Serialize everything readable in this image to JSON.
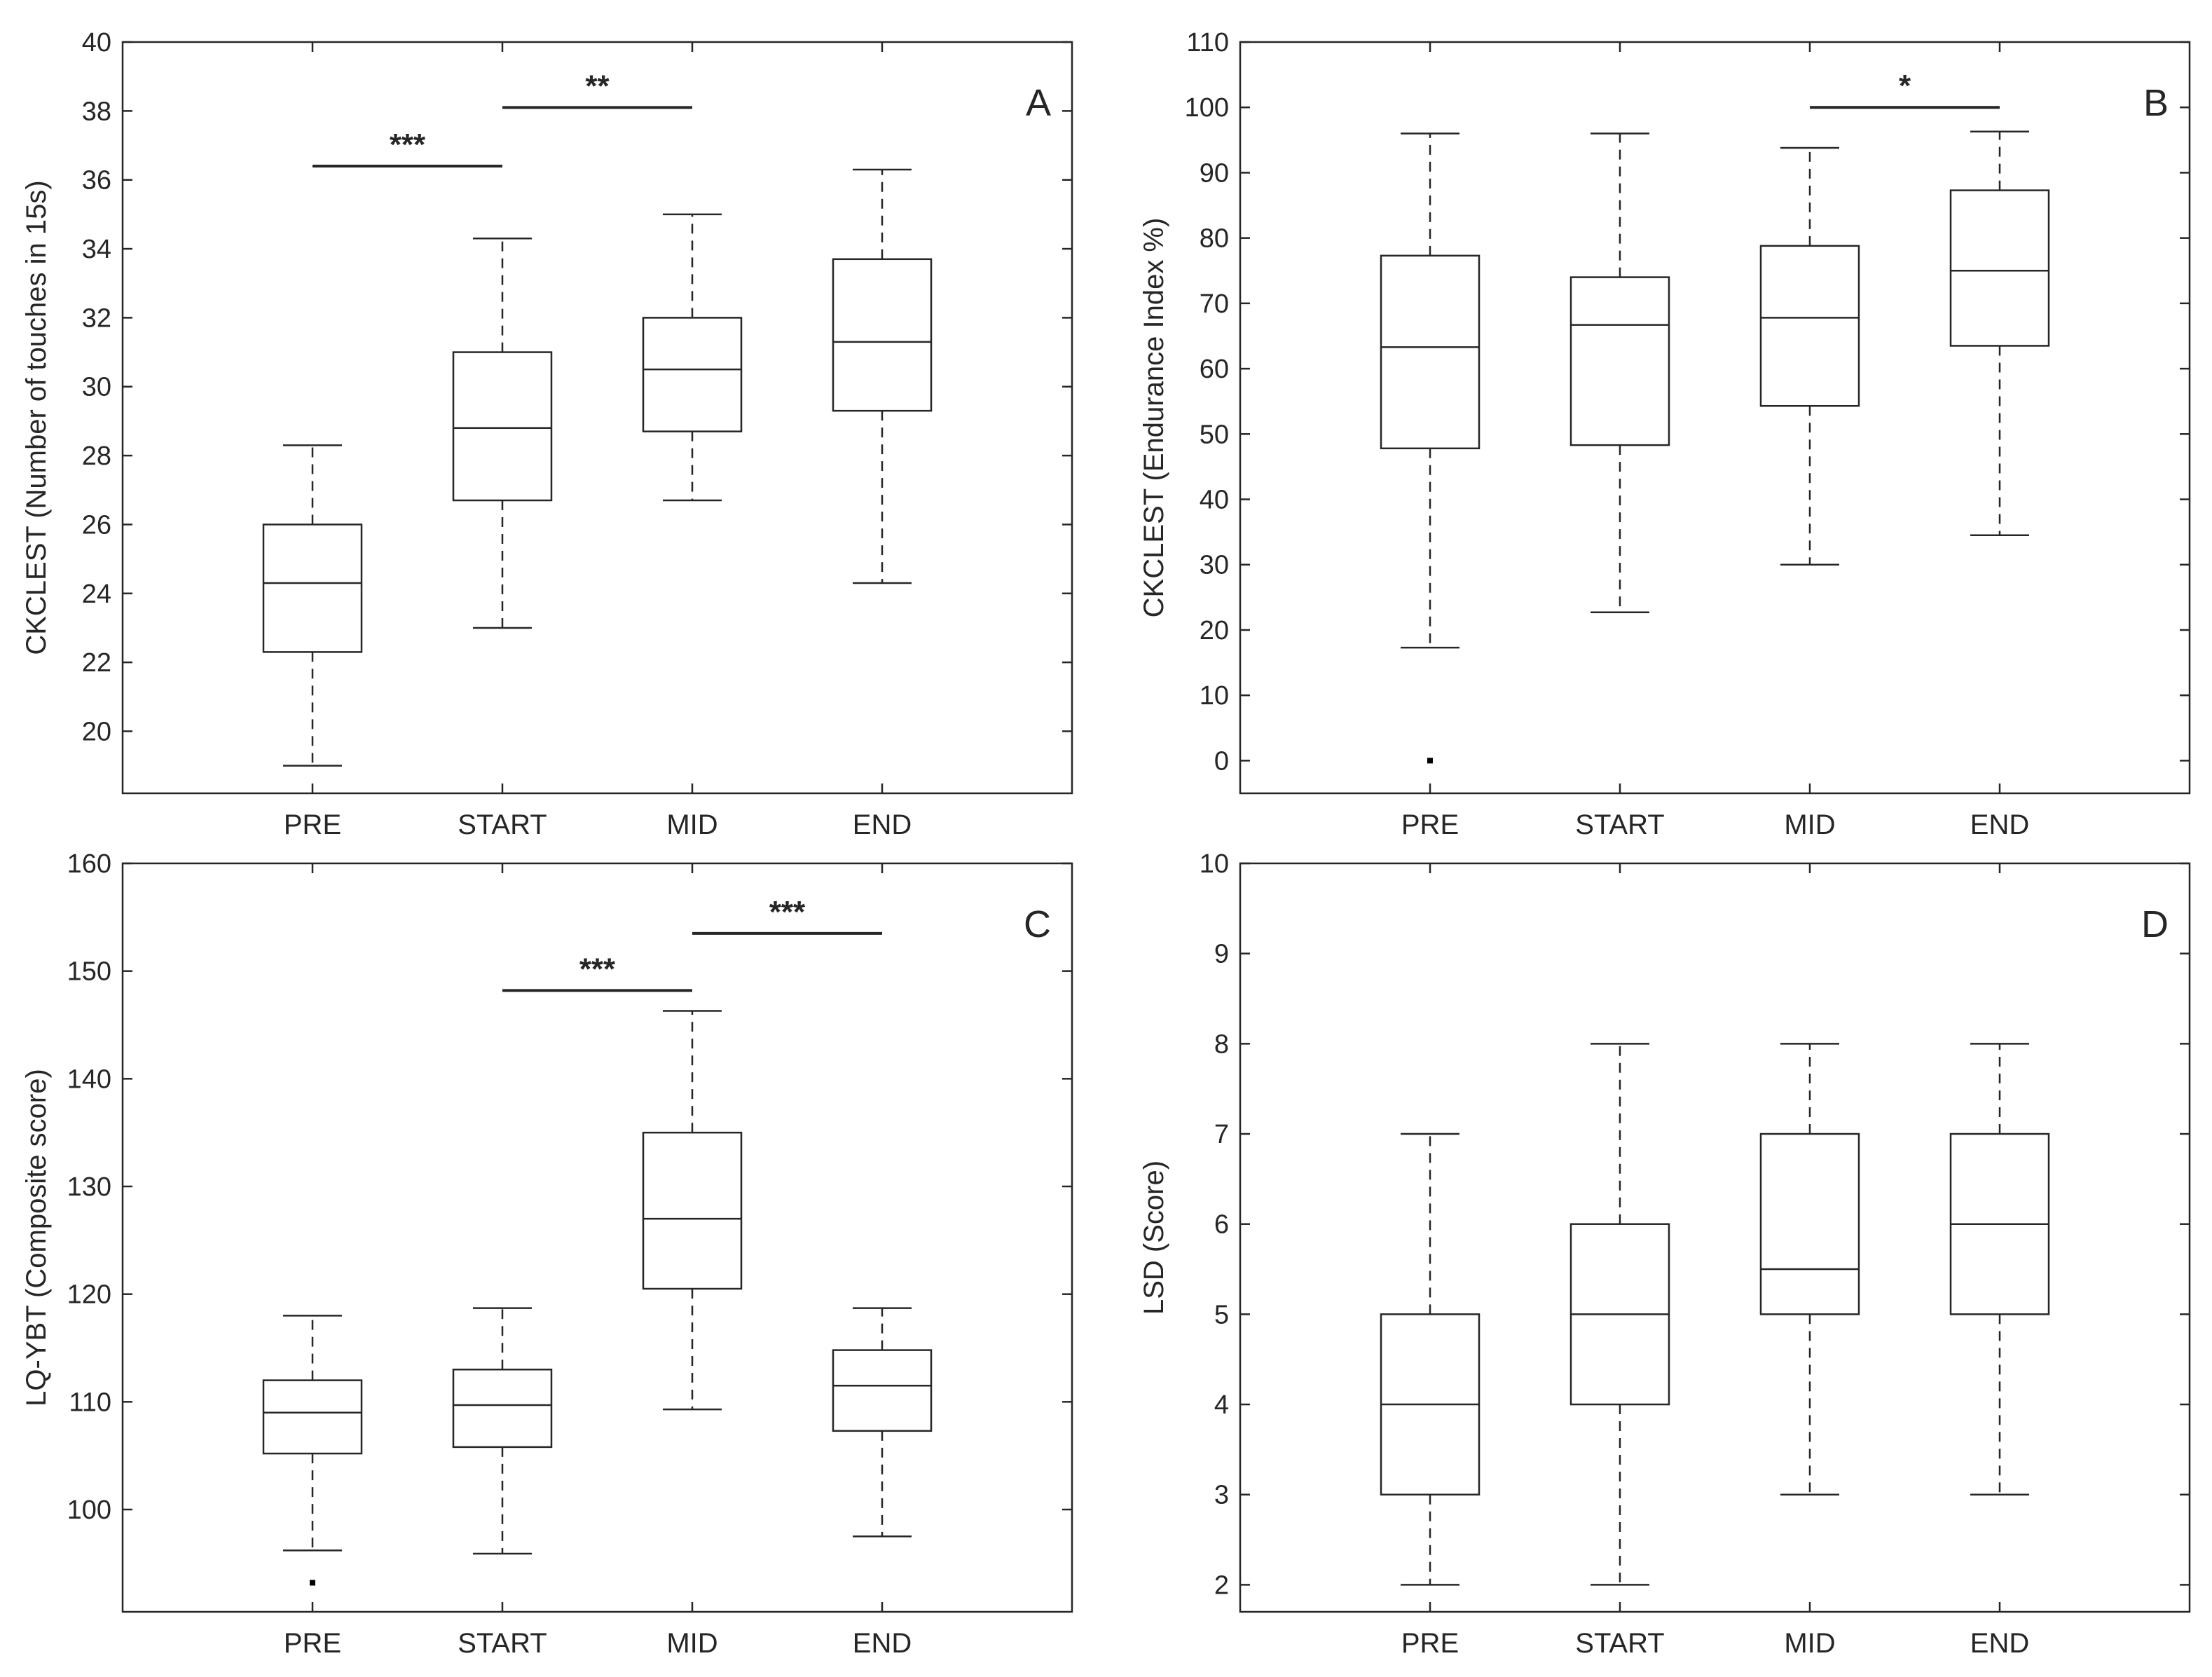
{
  "chart_data": [
    {
      "type": "box",
      "panel": "A",
      "ylabel": "CKCLEST (Number of touches in 15s)",
      "categories": [
        "PRE",
        "START",
        "MID",
        "END"
      ],
      "ylim": [
        18.2,
        40
      ],
      "yticks": [
        20,
        22,
        24,
        26,
        28,
        30,
        32,
        34,
        36,
        38,
        40
      ],
      "boxes": [
        {
          "min": 19.0,
          "q1": 22.3,
          "median": 24.3,
          "q3": 26.0,
          "max": 28.3,
          "outliers": []
        },
        {
          "min": 23.0,
          "q1": 26.7,
          "median": 28.8,
          "q3": 31.0,
          "max": 34.3,
          "outliers": []
        },
        {
          "min": 26.7,
          "q1": 28.7,
          "median": 30.5,
          "q3": 32.0,
          "max": 35.0,
          "outliers": []
        },
        {
          "min": 24.3,
          "q1": 29.3,
          "median": 31.3,
          "q3": 33.7,
          "max": 36.3,
          "outliers": []
        }
      ],
      "significance": [
        {
          "from": 0,
          "to": 1,
          "y": 36.4,
          "label": "***"
        },
        {
          "from": 1,
          "to": 2,
          "y": 38.1,
          "label": "**"
        }
      ]
    },
    {
      "type": "box",
      "panel": "B",
      "ylabel": "CKCLEST (Endurance Index %)",
      "categories": [
        "PRE",
        "START",
        "MID",
        "END"
      ],
      "ylim": [
        -5,
        110
      ],
      "yticks": [
        0,
        10,
        20,
        30,
        40,
        50,
        60,
        70,
        80,
        90,
        100,
        110
      ],
      "boxes": [
        {
          "min": 17.3,
          "q1": 47.8,
          "median": 63.3,
          "q3": 77.3,
          "max": 96.0,
          "outliers": [
            0
          ]
        },
        {
          "min": 22.7,
          "q1": 48.3,
          "median": 66.7,
          "q3": 74.0,
          "max": 96.0,
          "outliers": []
        },
        {
          "min": 30.0,
          "q1": 54.3,
          "median": 67.8,
          "q3": 78.8,
          "max": 93.8,
          "outliers": []
        },
        {
          "min": 34.5,
          "q1": 63.5,
          "median": 75.0,
          "q3": 87.3,
          "max": 96.3,
          "outliers": []
        }
      ],
      "significance": [
        {
          "from": 2,
          "to": 3,
          "y": 100.0,
          "label": "*"
        }
      ]
    },
    {
      "type": "box",
      "panel": "C",
      "ylabel": "LQ-YBT (Composite score)",
      "categories": [
        "PRE",
        "START",
        "MID",
        "END"
      ],
      "ylim": [
        90.5,
        160
      ],
      "yticks": [
        100,
        110,
        120,
        130,
        140,
        150,
        160
      ],
      "boxes": [
        {
          "min": 96.2,
          "q1": 105.2,
          "median": 109.0,
          "q3": 112.0,
          "max": 118.0,
          "outliers": [
            93.2
          ]
        },
        {
          "min": 95.9,
          "q1": 105.8,
          "median": 109.7,
          "q3": 113.0,
          "max": 118.7,
          "outliers": []
        },
        {
          "min": 109.3,
          "q1": 120.5,
          "median": 127.0,
          "q3": 135.0,
          "max": 146.3,
          "outliers": []
        },
        {
          "min": 97.5,
          "q1": 107.3,
          "median": 111.5,
          "q3": 114.8,
          "max": 118.7,
          "outliers": []
        }
      ],
      "significance": [
        {
          "from": 1,
          "to": 2,
          "y": 148.2,
          "label": "***"
        },
        {
          "from": 2,
          "to": 3,
          "y": 153.5,
          "label": "***"
        }
      ]
    },
    {
      "type": "box",
      "panel": "D",
      "ylabel": "LSD (Score)",
      "categories": [
        "PRE",
        "START",
        "MID",
        "END"
      ],
      "ylim": [
        1.7,
        10
      ],
      "yticks": [
        2,
        3,
        4,
        5,
        6,
        7,
        8,
        9,
        10
      ],
      "boxes": [
        {
          "min": 2,
          "q1": 3,
          "median": 4,
          "q3": 5,
          "max": 7,
          "outliers": []
        },
        {
          "min": 2,
          "q1": 4,
          "median": 5,
          "q3": 6,
          "max": 8,
          "outliers": []
        },
        {
          "min": 3,
          "q1": 5,
          "median": 5.5,
          "q3": 7,
          "max": 8,
          "outliers": []
        },
        {
          "min": 3,
          "q1": 5,
          "median": 6,
          "q3": 7,
          "max": 8,
          "outliers": []
        }
      ],
      "significance": []
    }
  ]
}
